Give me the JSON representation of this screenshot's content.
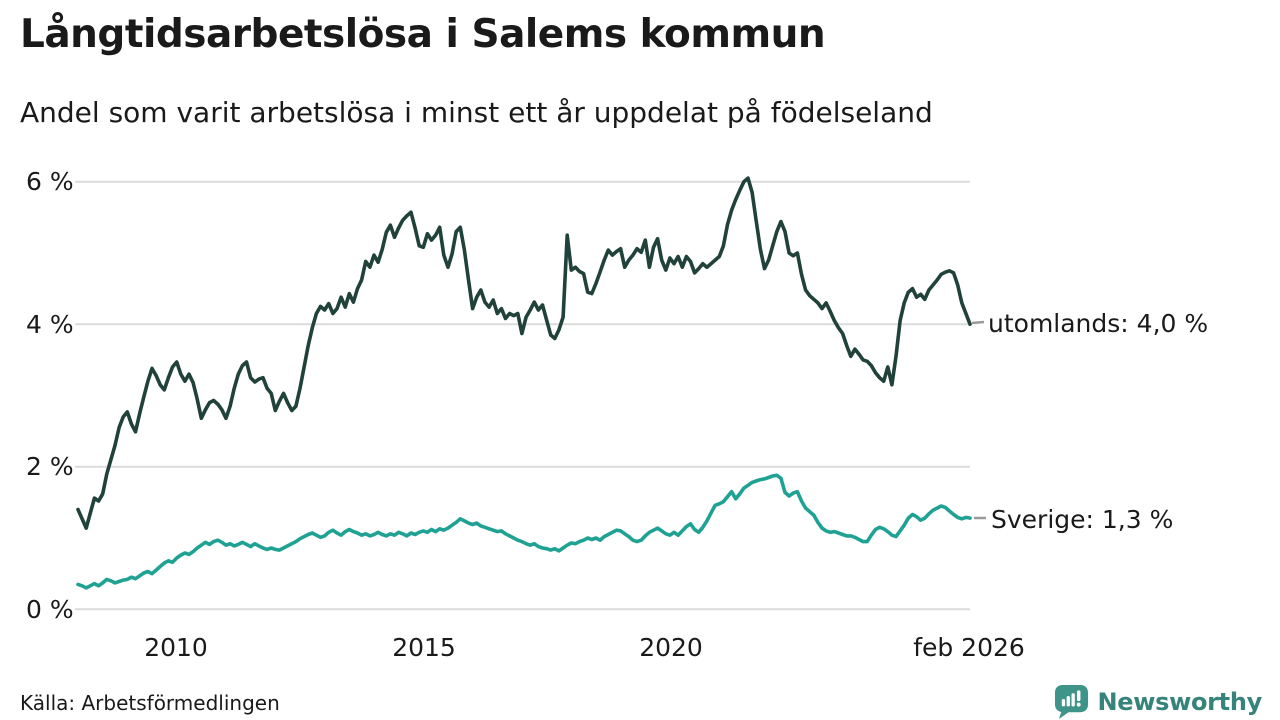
{
  "header": {
    "title": "Långtidsarbetslösa i Salems kommun",
    "subtitle": "Andel som varit arbetslösa i minst ett år uppdelat på födelseland"
  },
  "footer": {
    "source": "Källa: Arbetsförmedlingen",
    "brand": "Newsworthy"
  },
  "colors": {
    "utomlands_line": "#20423a",
    "sverige_line": "#1fa294",
    "gridline": "#dcdcdc",
    "text": "#1a1a1a",
    "label_tick": "#9a9a9a",
    "brand_teal": "#3f948a",
    "brand_text": "#35837a",
    "background": "#ffffff"
  },
  "chart_data": {
    "type": "line",
    "title": "Långtidsarbetslösa i Salems kommun",
    "subtitle": "Andel som varit arbetslösa i minst ett år uppdelat på födelseland",
    "x_unit": "month",
    "x_start": "2008-01",
    "x_end": "2026-02",
    "x_tick_labels": [
      "2010",
      "2015",
      "2020",
      "feb 2026"
    ],
    "x_tick_month_indices": [
      24,
      84,
      144,
      217
    ],
    "y_ticks": [
      0,
      2,
      4,
      6
    ],
    "y_tick_labels": [
      "0 %",
      "2 %",
      "4 %",
      "6 %"
    ],
    "ylim": [
      0,
      6.3
    ],
    "grid": "horizontal",
    "legend_position": "end-of-line-labels",
    "series": [
      {
        "name": "utomlands",
        "end_label": "utomlands: 4,0 %",
        "last_value_label": "4,0 %",
        "color": "#20423a",
        "values": [
          1.4,
          1.27,
          1.14,
          1.35,
          1.56,
          1.52,
          1.62,
          1.9,
          2.1,
          2.3,
          2.55,
          2.7,
          2.77,
          2.6,
          2.49,
          2.75,
          2.98,
          3.2,
          3.38,
          3.28,
          3.15,
          3.08,
          3.25,
          3.4,
          3.47,
          3.3,
          3.2,
          3.3,
          3.18,
          2.95,
          2.68,
          2.8,
          2.9,
          2.93,
          2.88,
          2.8,
          2.68,
          2.85,
          3.1,
          3.3,
          3.42,
          3.47,
          3.25,
          3.19,
          3.23,
          3.25,
          3.1,
          3.03,
          2.79,
          2.92,
          3.03,
          2.9,
          2.79,
          2.85,
          3.1,
          3.4,
          3.7,
          3.95,
          4.15,
          4.25,
          4.2,
          4.29,
          4.15,
          4.22,
          4.38,
          4.24,
          4.43,
          4.31,
          4.5,
          4.62,
          4.88,
          4.8,
          4.97,
          4.87,
          5.05,
          5.29,
          5.39,
          5.22,
          5.35,
          5.46,
          5.52,
          5.57,
          5.35,
          5.1,
          5.08,
          5.27,
          5.18,
          5.25,
          5.36,
          4.97,
          4.8,
          4.99,
          5.3,
          5.36,
          5.04,
          4.62,
          4.22,
          4.38,
          4.48,
          4.31,
          4.24,
          4.34,
          4.15,
          4.22,
          4.08,
          4.15,
          4.12,
          4.15,
          3.87,
          4.1,
          4.2,
          4.31,
          4.2,
          4.27,
          4.06,
          3.85,
          3.8,
          3.92,
          4.1,
          5.25,
          4.76,
          4.8,
          4.74,
          4.71,
          4.45,
          4.43,
          4.57,
          4.73,
          4.9,
          5.04,
          4.97,
          5.02,
          5.06,
          4.8,
          4.9,
          4.97,
          5.06,
          5.01,
          5.18,
          4.8,
          5.08,
          5.2,
          4.9,
          4.76,
          4.93,
          4.85,
          4.95,
          4.8,
          4.95,
          4.88,
          4.72,
          4.78,
          4.85,
          4.8,
          4.85,
          4.9,
          4.95,
          5.1,
          5.4,
          5.6,
          5.75,
          5.88,
          6.0,
          6.05,
          5.85,
          5.45,
          5.05,
          4.78,
          4.9,
          5.1,
          5.3,
          5.44,
          5.3,
          5.0,
          4.96,
          5.0,
          4.7,
          4.48,
          4.4,
          4.35,
          4.3,
          4.22,
          4.3,
          4.18,
          4.05,
          3.95,
          3.87,
          3.7,
          3.55,
          3.65,
          3.58,
          3.5,
          3.48,
          3.42,
          3.32,
          3.25,
          3.2,
          3.4,
          3.15,
          3.55,
          4.05,
          4.3,
          4.45,
          4.5,
          4.38,
          4.42,
          4.35,
          4.48,
          4.55,
          4.62,
          4.7,
          4.73,
          4.75,
          4.72,
          4.55,
          4.3,
          4.15,
          4.0
        ]
      },
      {
        "name": "Sverige",
        "end_label": "Sverige: 1,3 %",
        "last_value_label": "1,3 %",
        "color": "#1fa294",
        "values": [
          0.35,
          0.33,
          0.3,
          0.33,
          0.36,
          0.33,
          0.37,
          0.42,
          0.4,
          0.37,
          0.39,
          0.41,
          0.42,
          0.45,
          0.43,
          0.47,
          0.51,
          0.53,
          0.5,
          0.55,
          0.6,
          0.65,
          0.68,
          0.66,
          0.72,
          0.76,
          0.79,
          0.77,
          0.81,
          0.86,
          0.9,
          0.94,
          0.91,
          0.95,
          0.97,
          0.94,
          0.9,
          0.92,
          0.89,
          0.91,
          0.94,
          0.91,
          0.88,
          0.92,
          0.89,
          0.86,
          0.84,
          0.86,
          0.84,
          0.83,
          0.86,
          0.89,
          0.92,
          0.95,
          0.99,
          1.02,
          1.05,
          1.07,
          1.04,
          1.01,
          1.03,
          1.08,
          1.11,
          1.07,
          1.04,
          1.09,
          1.12,
          1.09,
          1.07,
          1.04,
          1.06,
          1.03,
          1.05,
          1.08,
          1.05,
          1.03,
          1.06,
          1.04,
          1.08,
          1.06,
          1.03,
          1.07,
          1.05,
          1.08,
          1.1,
          1.08,
          1.12,
          1.09,
          1.13,
          1.11,
          1.14,
          1.18,
          1.22,
          1.27,
          1.24,
          1.21,
          1.19,
          1.21,
          1.17,
          1.15,
          1.13,
          1.11,
          1.09,
          1.1,
          1.06,
          1.03,
          1.0,
          0.97,
          0.95,
          0.92,
          0.9,
          0.92,
          0.88,
          0.86,
          0.85,
          0.83,
          0.85,
          0.82,
          0.86,
          0.9,
          0.93,
          0.92,
          0.95,
          0.97,
          1.0,
          0.98,
          1.0,
          0.97,
          1.02,
          1.05,
          1.08,
          1.11,
          1.1,
          1.06,
          1.02,
          0.97,
          0.95,
          0.97,
          1.03,
          1.08,
          1.11,
          1.14,
          1.1,
          1.06,
          1.04,
          1.08,
          1.04,
          1.1,
          1.16,
          1.2,
          1.12,
          1.08,
          1.15,
          1.24,
          1.35,
          1.46,
          1.48,
          1.51,
          1.58,
          1.65,
          1.55,
          1.62,
          1.7,
          1.74,
          1.78,
          1.8,
          1.82,
          1.83,
          1.85,
          1.87,
          1.88,
          1.84,
          1.64,
          1.59,
          1.63,
          1.65,
          1.52,
          1.42,
          1.37,
          1.32,
          1.22,
          1.14,
          1.1,
          1.08,
          1.09,
          1.07,
          1.05,
          1.03,
          1.03,
          1.01,
          0.98,
          0.95,
          0.95,
          1.04,
          1.12,
          1.15,
          1.13,
          1.09,
          1.04,
          1.02,
          1.1,
          1.18,
          1.28,
          1.33,
          1.3,
          1.25,
          1.28,
          1.34,
          1.39,
          1.42,
          1.45,
          1.43,
          1.38,
          1.33,
          1.29,
          1.27,
          1.29,
          1.28
        ]
      }
    ]
  }
}
